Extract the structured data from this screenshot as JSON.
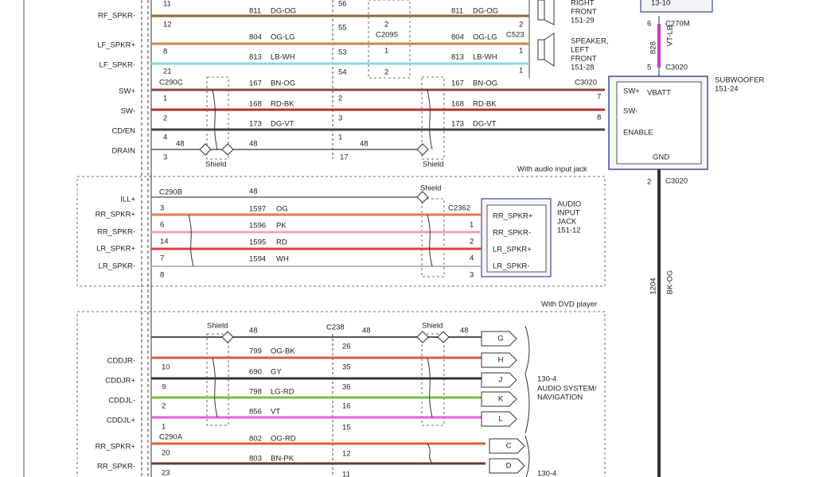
{
  "left_labels": [
    "RF_SPKR-",
    "LF_SPKR+",
    "LF_SPKR-",
    "SW+",
    "SW-",
    "CD/EN",
    "DRAIN",
    "ILL+",
    "RR_SPKR+",
    "RR_SPKR-",
    "LR_SPKR+",
    "LR_SPKR-",
    "CDDJR-",
    "CDDJR+",
    "CDDJL-",
    "CDDJL+",
    "RR_SPKR+",
    "RR_SPKR-"
  ],
  "labels": [
    "11",
    "12",
    "8",
    "21",
    "1",
    "2",
    "4",
    "3",
    "3",
    "6",
    "14",
    "7",
    "8",
    "10",
    "9",
    "2",
    "1",
    "20",
    "23",
    "C290C",
    "C290B",
    "C290A",
    "C2095",
    "C523",
    "C3020",
    "C2362",
    "C238",
    "C270M",
    "C3020",
    "C3020",
    "811",
    "DG-OG",
    "804",
    "OG-LG",
    "813",
    "LB-WH",
    "167",
    "BN-OG",
    "168",
    "RD-BK",
    "173",
    "DG-VT",
    "48",
    "48",
    "48",
    "811",
    "DG-OG",
    "804",
    "OG-LG",
    "813",
    "LB-WH",
    "167",
    "BN-OG",
    "168",
    "RD-BK",
    "173",
    "DG-VT",
    "56",
    "55",
    "53",
    "54",
    "2",
    "3",
    "1",
    "17",
    "2",
    "1",
    "2",
    "2",
    "1",
    "1",
    "7",
    "8",
    "Shield",
    "Shield",
    "Shield",
    "Shield",
    "Shield",
    "48",
    "1597",
    "OG",
    "1596",
    "PK",
    "1595",
    "RD",
    "1594",
    "WH",
    "1",
    "2",
    "4",
    "3",
    "RR_SPKR+",
    "RR_SPKR-",
    "LR_SPKR+",
    "LR_SPKR-",
    "AUDIO",
    "INPUT",
    "JACK",
    "151-12",
    "48",
    "48",
    "48",
    "26",
    "799",
    "OG-BK",
    "35",
    "690",
    "GY",
    "36",
    "798",
    "LG-RD",
    "16",
    "856",
    "VT",
    "15",
    "802",
    "OG-RD",
    "12",
    "803",
    "BN-PK",
    "11",
    "With audio input jack",
    "With DVD player",
    "RIGHT",
    "FRONT",
    "151-29",
    "SPEAKER,",
    "LEFT",
    "FRONT",
    "151-28",
    "SUBWOOFER",
    "151-24",
    "SW+",
    "VBATT",
    "SW-",
    "ENABLE",
    "GND",
    "13-10",
    "6",
    "5",
    "2",
    "130-4",
    "AUDIO SYSTEM/",
    "NAVIGATION",
    "130-4"
  ],
  "letters": [
    "G",
    "H",
    "J",
    "K",
    "L",
    "C",
    "D"
  ],
  "rotated": [
    "828",
    "VT-LB",
    "1204",
    "BK-OG"
  ]
}
